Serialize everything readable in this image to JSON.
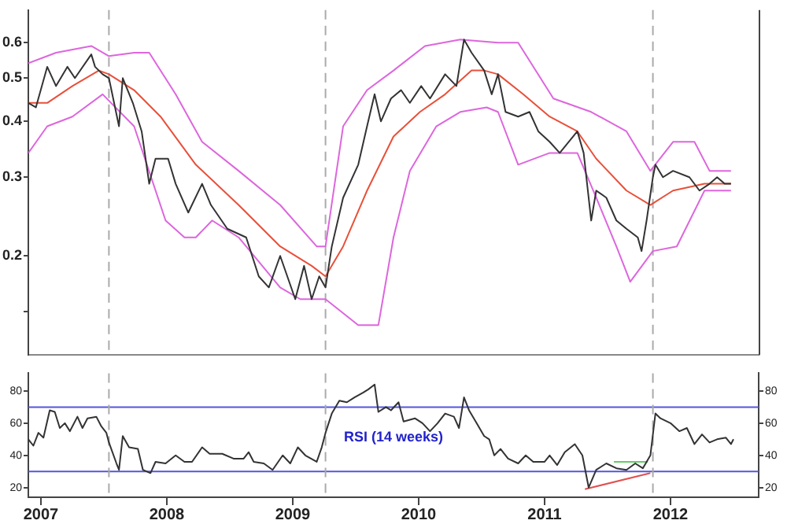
{
  "chart_data": [
    {
      "type": "line",
      "log": "y",
      "grid": false,
      "tick_labels": "y",
      "xlim": [
        2006.9,
        2012.7
      ],
      "xticks": [
        2007,
        2008,
        2009,
        2010,
        2011,
        2012
      ],
      "ylim": [
        0.12,
        0.71
      ],
      "yticks": [
        {
          "value": 0.15,
          "label": null
        },
        0.2,
        0.3,
        0.4,
        0.5,
        0.6
      ],
      "ref_lines": [
        {
          "axis": "x",
          "value": 2007.54,
          "label": null,
          "color": "#aaaaaa",
          "line_style": "dashed"
        },
        {
          "axis": "x",
          "value": 2009.26,
          "label": null,
          "color": "#aaaaaa",
          "line_style": "dashed"
        },
        {
          "axis": "x",
          "value": 2011.86,
          "label": null,
          "color": "#aaaaaa",
          "line_style": "dashed"
        }
      ],
      "series": [
        {
          "color": "#333333",
          "x": [
            2006.9,
            2006.96,
            2007.05,
            2007.12,
            2007.21,
            2007.27,
            2007.4,
            2007.43,
            2007.49,
            2007.54,
            2007.62,
            2007.65,
            2007.73,
            2007.8,
            2007.86,
            2007.91,
            2008.01,
            2008.07,
            2008.17,
            2008.28,
            2008.35,
            2008.48,
            2008.63,
            2008.73,
            2008.81,
            2008.9,
            2009.02,
            2009.09,
            2009.15,
            2009.21,
            2009.26,
            2009.31,
            2009.4,
            2009.52,
            2009.59,
            2009.65,
            2009.7,
            2009.78,
            2009.86,
            2009.93,
            2010.02,
            2010.09,
            2010.21,
            2010.3,
            2010.36,
            2010.42,
            2010.52,
            2010.58,
            2010.63,
            2010.69,
            2010.79,
            2010.88,
            2010.95,
            2011.04,
            2011.12,
            2011.26,
            2011.31,
            2011.37,
            2011.41,
            2011.49,
            2011.57,
            2011.65,
            2011.74,
            2011.77,
            2011.81,
            2011.86,
            2011.88,
            2011.94,
            2012.02,
            2012.15,
            2012.23,
            2012.31,
            2012.37,
            2012.43,
            2012.48
          ],
          "values": [
            0.44,
            0.43,
            0.53,
            0.48,
            0.53,
            0.5,
            0.565,
            0.53,
            0.51,
            0.5,
            0.39,
            0.5,
            0.44,
            0.38,
            0.29,
            0.33,
            0.33,
            0.29,
            0.25,
            0.29,
            0.26,
            0.23,
            0.22,
            0.18,
            0.17,
            0.2,
            0.16,
            0.19,
            0.16,
            0.18,
            0.17,
            0.21,
            0.27,
            0.32,
            0.39,
            0.46,
            0.4,
            0.45,
            0.47,
            0.44,
            0.48,
            0.45,
            0.51,
            0.48,
            0.61,
            0.57,
            0.52,
            0.46,
            0.51,
            0.42,
            0.41,
            0.42,
            0.38,
            0.36,
            0.34,
            0.38,
            0.34,
            0.24,
            0.28,
            0.27,
            0.24,
            0.23,
            0.22,
            0.205,
            0.24,
            0.3,
            0.32,
            0.3,
            0.31,
            0.3,
            0.28,
            0.29,
            0.3,
            0.29,
            0.29
          ]
        },
        {
          "color": "#e8503a",
          "x": [
            2006.9,
            2007.05,
            2007.25,
            2007.46,
            2007.54,
            2007.74,
            2007.95,
            2008.23,
            2008.57,
            2008.9,
            2009.15,
            2009.26,
            2009.4,
            2009.59,
            2009.8,
            2010.01,
            2010.21,
            2010.42,
            2010.52,
            2010.63,
            2010.83,
            2011.04,
            2011.26,
            2011.41,
            2011.65,
            2011.84,
            2012.02,
            2012.27,
            2012.48
          ],
          "values": [
            0.44,
            0.44,
            0.48,
            0.52,
            0.51,
            0.47,
            0.41,
            0.32,
            0.26,
            0.21,
            0.19,
            0.18,
            0.21,
            0.28,
            0.37,
            0.42,
            0.46,
            0.52,
            0.52,
            0.51,
            0.46,
            0.41,
            0.38,
            0.33,
            0.28,
            0.26,
            0.28,
            0.29,
            0.29
          ]
        },
        {
          "color": "#dd66dd",
          "x": [
            2006.9,
            2007.12,
            2007.4,
            2007.54,
            2007.74,
            2007.86,
            2008.07,
            2008.28,
            2008.57,
            2008.9,
            2009.19,
            2009.26,
            2009.4,
            2009.59,
            2009.8,
            2010.05,
            2010.33,
            2010.63,
            2010.79,
            2011.07,
            2011.37,
            2011.65,
            2011.84,
            2012.02,
            2012.19,
            2012.31,
            2012.48
          ],
          "values": [
            0.54,
            0.57,
            0.59,
            0.56,
            0.57,
            0.57,
            0.46,
            0.36,
            0.31,
            0.26,
            0.21,
            0.21,
            0.39,
            0.47,
            0.52,
            0.59,
            0.61,
            0.6,
            0.6,
            0.45,
            0.42,
            0.38,
            0.31,
            0.36,
            0.36,
            0.31,
            0.31
          ]
        },
        {
          "color": "#dd66dd",
          "x": [
            2006.9,
            2007.05,
            2007.25,
            2007.49,
            2007.74,
            2007.99,
            2008.14,
            2008.23,
            2008.36,
            2008.57,
            2008.9,
            2009.06,
            2009.26,
            2009.52,
            2009.68,
            2009.8,
            2009.93,
            2010.14,
            2010.33,
            2010.54,
            2010.63,
            2010.79,
            2011.04,
            2011.26,
            2011.41,
            2011.57,
            2011.68,
            2011.86,
            2012.05,
            2012.27,
            2012.48
          ],
          "values": [
            0.34,
            0.39,
            0.41,
            0.46,
            0.39,
            0.24,
            0.22,
            0.22,
            0.24,
            0.22,
            0.17,
            0.16,
            0.16,
            0.14,
            0.14,
            0.22,
            0.31,
            0.39,
            0.42,
            0.43,
            0.42,
            0.32,
            0.34,
            0.34,
            0.27,
            0.21,
            0.175,
            0.205,
            0.21,
            0.28,
            0.28
          ]
        }
      ]
    },
    {
      "type": "line",
      "grid": false,
      "xlim": [
        2006.9,
        2012.7
      ],
      "xticks": [
        2007,
        2008,
        2009,
        2010,
        2011,
        2012
      ],
      "ylim": [
        14,
        91
      ],
      "yticks": [
        20,
        40,
        60,
        80
      ],
      "y2lim": [
        14,
        91
      ],
      "y2ticks": [
        20,
        40,
        60,
        80
      ],
      "annotations": [
        "RSI (14 weeks)"
      ],
      "ref_lines": [
        {
          "axis": "y",
          "value": 70,
          "label": null,
          "color": "#5555dd"
        },
        {
          "axis": "y",
          "value": 30,
          "label": null,
          "color": "#5555dd"
        },
        {
          "axis": "x",
          "value": 2007.54,
          "label": null,
          "color": "#aaaaaa",
          "line_style": "dashed"
        },
        {
          "axis": "x",
          "value": 2009.26,
          "label": null,
          "color": "#aaaaaa",
          "line_style": "dashed"
        },
        {
          "axis": "x",
          "value": 2011.86,
          "label": null,
          "color": "#aaaaaa",
          "line_style": "dashed"
        }
      ],
      "series": [
        {
          "color": "#333333",
          "x": [
            2006.9,
            2006.94,
            2006.98,
            2007.02,
            2007.07,
            2007.11,
            2007.15,
            2007.19,
            2007.23,
            2007.29,
            2007.33,
            2007.37,
            2007.44,
            2007.48,
            2007.52,
            2007.54,
            2007.6,
            2007.62,
            2007.65,
            2007.7,
            2007.77,
            2007.81,
            2007.87,
            2007.91,
            2007.99,
            2008.07,
            2008.14,
            2008.2,
            2008.28,
            2008.34,
            2008.44,
            2008.53,
            2008.61,
            2008.65,
            2008.69,
            2008.77,
            2008.84,
            2008.92,
            2008.98,
            2009.04,
            2009.1,
            2009.19,
            2009.23,
            2009.26,
            2009.31,
            2009.37,
            2009.43,
            2009.49,
            2009.56,
            2009.6,
            2009.65,
            2009.68,
            2009.74,
            2009.78,
            2009.84,
            2009.88,
            2009.97,
            2010.03,
            2010.09,
            2010.15,
            2010.21,
            2010.28,
            2010.32,
            2010.36,
            2010.4,
            2010.46,
            2010.52,
            2010.56,
            2010.6,
            2010.65,
            2010.71,
            2010.79,
            2010.85,
            2010.91,
            2011.0,
            2011.04,
            2011.1,
            2011.16,
            2011.24,
            2011.3,
            2011.35,
            2011.41,
            2011.49,
            2011.57,
            2011.65,
            2011.72,
            2011.78,
            2011.84,
            2011.88,
            2011.92,
            2012.0,
            2012.07,
            2012.13,
            2012.19,
            2012.25,
            2012.31,
            2012.37,
            2012.44,
            2012.48,
            2012.5
          ],
          "values": [
            50,
            46,
            54,
            51,
            68,
            67,
            57,
            60,
            55,
            64,
            57,
            63,
            64,
            58,
            54,
            48,
            35,
            31,
            52,
            45,
            44,
            31,
            29,
            36,
            35,
            40,
            36,
            36,
            45,
            41,
            41,
            38,
            38,
            42,
            36,
            35,
            31,
            40,
            35,
            45,
            40,
            36,
            45,
            54,
            66,
            74,
            73,
            76,
            79,
            81,
            84,
            67,
            70,
            68,
            73,
            61,
            63,
            60,
            55,
            60,
            66,
            64,
            57,
            76,
            68,
            60,
            52,
            50,
            40,
            44,
            38,
            35,
            40,
            36,
            36,
            40,
            34,
            42,
            47,
            40,
            20,
            31,
            35,
            32,
            31,
            35,
            32,
            40,
            66,
            63,
            60,
            55,
            57,
            47,
            53,
            48,
            50,
            51,
            47,
            50
          ]
        },
        {
          "color": "#e05050",
          "x": [
            2011.32,
            2011.84
          ],
          "values": [
            19,
            29
          ]
        },
        {
          "color": "#66cc66",
          "x": [
            2011.55,
            2011.82
          ],
          "values": [
            36,
            36
          ]
        }
      ]
    }
  ]
}
